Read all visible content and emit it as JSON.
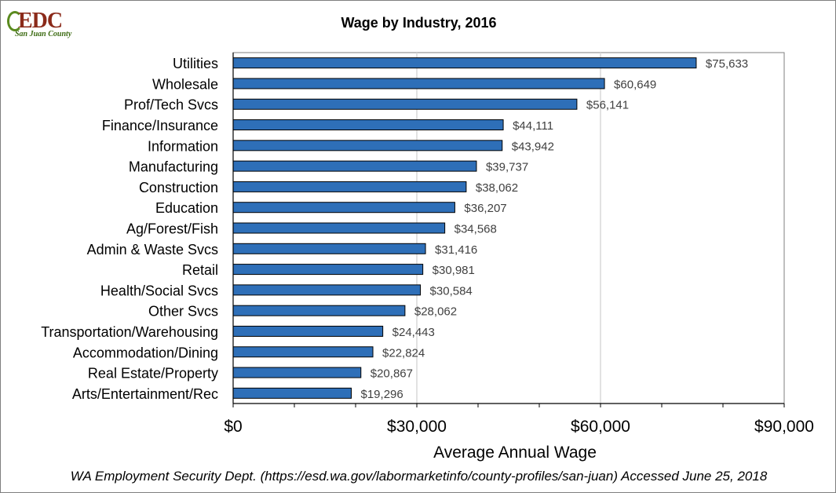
{
  "logo": {
    "text": "EDC",
    "subtitle": "San Juan County",
    "text_color": "#8b2a1a",
    "accent_color": "#5a8a1e",
    "subtitle_color": "#3c6b12"
  },
  "source_note": "WA Employment Security Dept. (https://esd.wa.gov/labormarketinfo/county-profiles/san-juan) Accessed June 25, 2018",
  "chart_data": {
    "type": "bar",
    "orientation": "horizontal",
    "title": "Wage by Industry, 2016",
    "xlabel": "Average Annual Wage",
    "ylabel": "",
    "categories": [
      "Utilities",
      "Wholesale",
      "Prof/Tech Svcs",
      "Finance/Insurance",
      "Information",
      "Manufacturing",
      "Construction",
      "Education",
      "Ag/Forest/Fish",
      "Admin & Waste Svcs",
      "Retail",
      "Health/Social Svcs",
      "Other Svcs",
      "Transportation/Warehousing",
      "Accommodation/Dining",
      "Real Estate/Property",
      "Arts/Entertainment/Rec"
    ],
    "values": [
      75633,
      60649,
      56141,
      44111,
      43942,
      39737,
      38062,
      36207,
      34568,
      31416,
      30981,
      30584,
      28062,
      24443,
      22824,
      20867,
      19296
    ],
    "data_labels": [
      "$75,633",
      "$60,649",
      "$56,141",
      "$44,111",
      "$43,942",
      "$39,737",
      "$38,062",
      "$36,207",
      "$34,568",
      "$31,416",
      "$30,981",
      "$30,584",
      "$28,062",
      "$24,443",
      "$22,824",
      "$20,867",
      "$19,296"
    ],
    "xlim": [
      0,
      90000
    ],
    "x_ticks": [
      0,
      30000,
      60000,
      90000
    ],
    "x_tick_labels": [
      "$0",
      "$30,000",
      "$60,000",
      "$90,000"
    ],
    "x_minor_ticks": [
      10000,
      20000,
      40000,
      50000,
      70000,
      80000
    ],
    "grid": "vertical major gridlines",
    "legend": "none",
    "bar_color": "#2e6fb8",
    "bar_edge_color": "#000000",
    "grid_color": "#d9d9d9"
  }
}
